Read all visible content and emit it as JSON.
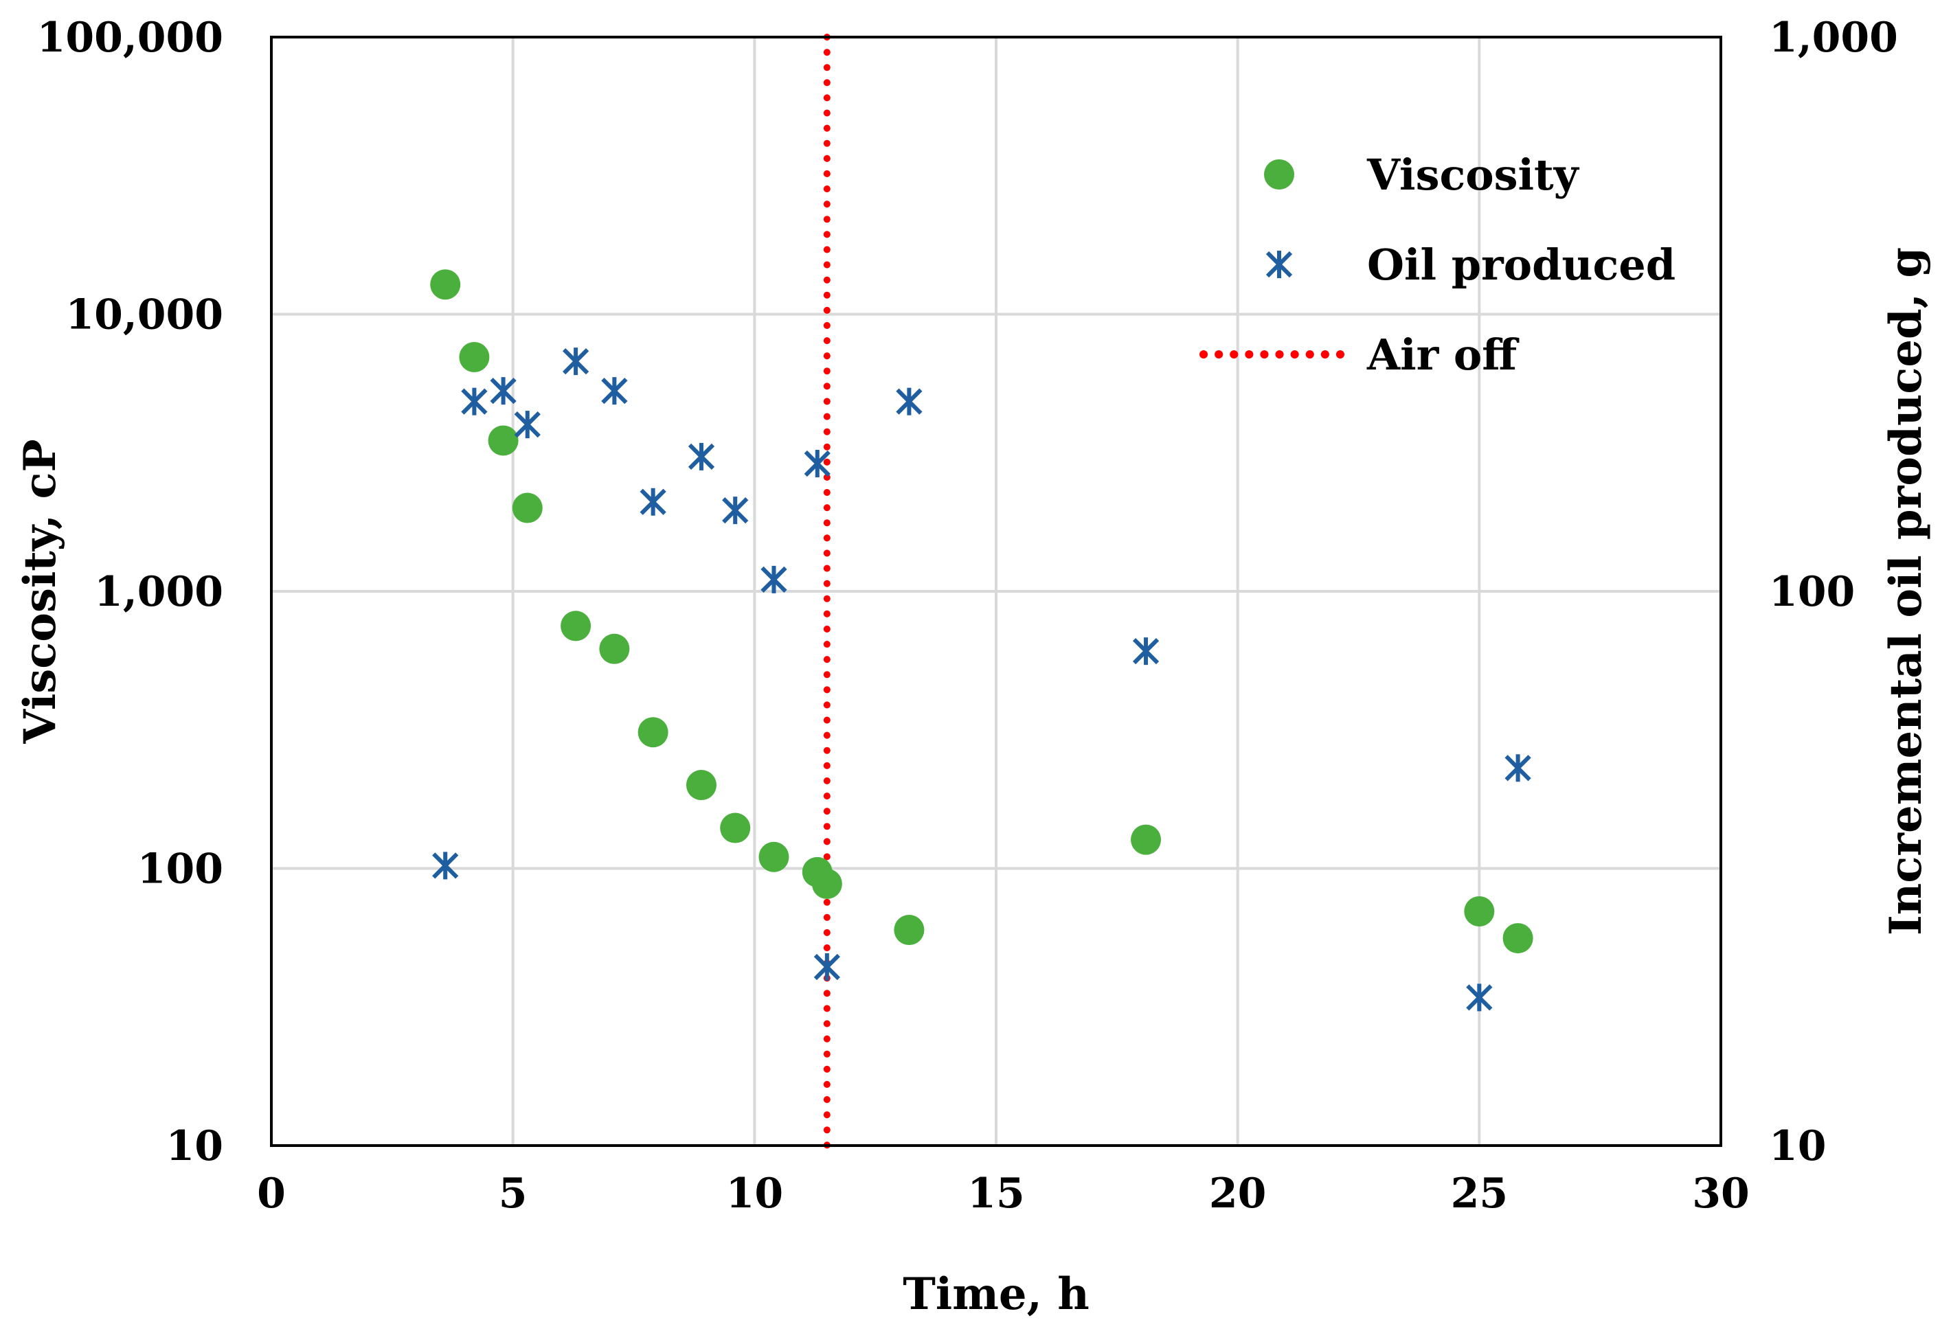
{
  "chart_data": {
    "type": "scatter",
    "title": "",
    "xlabel": "Time, h",
    "ylabel": "Viscosity, cP",
    "y2label": "Incremental oil produced, g",
    "xlim": [
      0,
      30
    ],
    "ylim": [
      10,
      100000
    ],
    "y2lim": [
      10,
      1000
    ],
    "yscale": "log",
    "y2scale": "log",
    "grid": true,
    "legend_position": "top-right",
    "x_ticks": [
      "0",
      "5",
      "10",
      "15",
      "20",
      "25",
      "30"
    ],
    "y_ticks": [
      "10",
      "100",
      "1,000",
      "10,000",
      "100,000"
    ],
    "y2_ticks": [
      "10",
      "100",
      "1,000"
    ],
    "colors": {
      "viscosity": "#4aaf3c",
      "oil": "#1f5ea0",
      "air_off": "#ff0000"
    },
    "series": [
      {
        "name": "Viscosity",
        "axis": "left",
        "marker": "circle",
        "points": [
          [
            3.6,
            12800
          ],
          [
            4.2,
            7000
          ],
          [
            4.8,
            3500
          ],
          [
            5.3,
            2000
          ],
          [
            6.3,
            750
          ],
          [
            7.1,
            620
          ],
          [
            7.9,
            310
          ],
          [
            8.9,
            200
          ],
          [
            9.6,
            140
          ],
          [
            10.4,
            110
          ],
          [
            11.3,
            97
          ],
          [
            11.5,
            88
          ],
          [
            13.2,
            60
          ],
          [
            18.1,
            127
          ],
          [
            25.0,
            70
          ],
          [
            25.8,
            56
          ]
        ]
      },
      {
        "name": "Oil produced",
        "axis": "right",
        "marker": "asterisk",
        "points": [
          [
            3.6,
            32
          ],
          [
            4.2,
            220
          ],
          [
            4.8,
            230
          ],
          [
            5.3,
            200
          ],
          [
            6.3,
            260
          ],
          [
            7.1,
            230
          ],
          [
            7.9,
            145
          ],
          [
            8.9,
            175
          ],
          [
            9.6,
            140
          ],
          [
            10.4,
            105
          ],
          [
            11.3,
            170
          ],
          [
            11.5,
            21
          ],
          [
            13.2,
            220
          ],
          [
            18.1,
            78
          ],
          [
            25.0,
            18.5
          ],
          [
            25.8,
            48
          ]
        ]
      }
    ],
    "reference_lines": [
      {
        "name": "Air off",
        "orientation": "vertical",
        "x": 11.5,
        "style": "dotted"
      }
    ]
  }
}
